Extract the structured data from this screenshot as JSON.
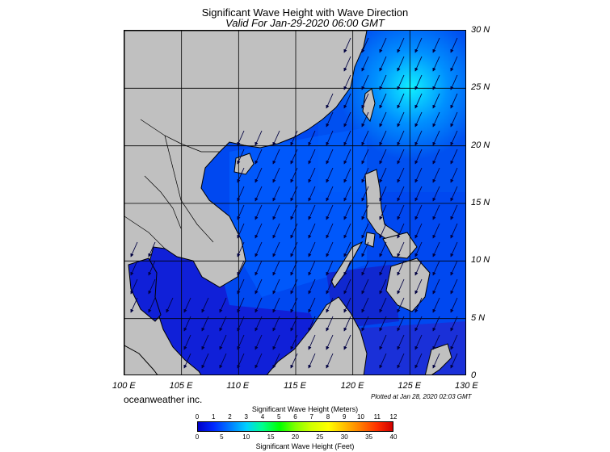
{
  "title": "Significant Wave Height with Wave Direction",
  "subtitle": "Valid For Jan-29-2020 06:00 GMT",
  "company": "oceanweather inc.",
  "plotted": "Plotted at Jan 28, 2020 02:03 GMT",
  "lon_labels": [
    "100 E",
    "105 E",
    "110 E",
    "115 E",
    "120 E",
    "125 E",
    "130 E"
  ],
  "lat_labels": [
    "30 N",
    "25 N",
    "20 N",
    "15 N",
    "10 N",
    "5 N",
    "0"
  ],
  "colorbar": {
    "meters_title": "Significant Wave Height (Meters)",
    "feet_title": "Significant Wave Height (Feet)",
    "meters_ticks": [
      "0",
      "1",
      "2",
      "3",
      "4",
      "5",
      "6",
      "7",
      "8",
      "9",
      "10",
      "11",
      "12"
    ],
    "feet_ticks": [
      "0",
      "5",
      "10",
      "15",
      "20",
      "25",
      "30",
      "35",
      "40"
    ]
  },
  "colors": {
    "land": "#c0c0c0",
    "sea_low": "#0000d0",
    "sea_mid": "#0060ff",
    "sea_high": "#00e8ff"
  },
  "map": {
    "lon_range": [
      100,
      130
    ],
    "lat_range": [
      0,
      30
    ],
    "lon_unit": "E",
    "lat_unit": "N"
  }
}
